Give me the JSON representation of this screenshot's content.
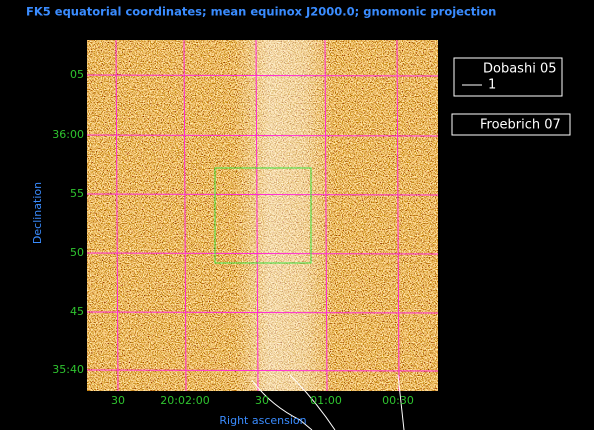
{
  "title": "FK5 equatorial coordinates; mean equinox J2000.0; gnomonic projection",
  "x_axis": {
    "label": "Right ascension",
    "ticks": [
      "30",
      "20:02:00",
      "30",
      "01:00",
      "00:30"
    ]
  },
  "y_axis": {
    "label": "Declination",
    "ticks": [
      "05",
      "36:00",
      "55",
      "50",
      "45",
      "35:40"
    ]
  },
  "legend": [
    {
      "label": "Dobashi 05",
      "line_label": "1"
    },
    {
      "label": "Froebrich 07"
    }
  ]
}
